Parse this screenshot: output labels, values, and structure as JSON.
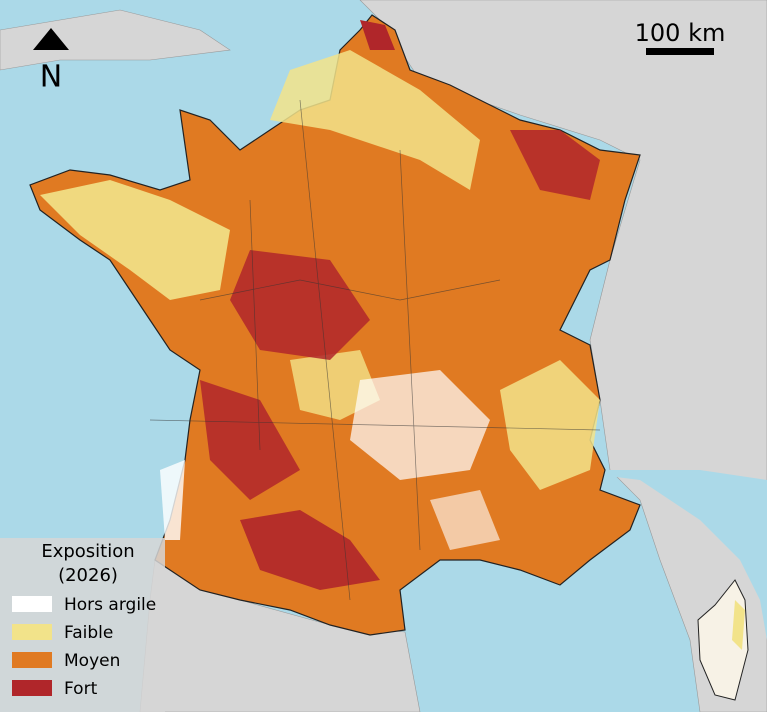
{
  "map": {
    "north_label": "N",
    "scale_label": "100 km",
    "legend": {
      "title_lines": [
        "Exposition",
        "(2026)"
      ],
      "items": [
        {
          "label": "Hors argile",
          "color": "#ffffff"
        },
        {
          "label": "Faible",
          "color": "#f2e38a"
        },
        {
          "label": "Moyen",
          "color": "#e07a22"
        },
        {
          "label": "Fort",
          "color": "#b0262a"
        }
      ]
    }
  }
}
